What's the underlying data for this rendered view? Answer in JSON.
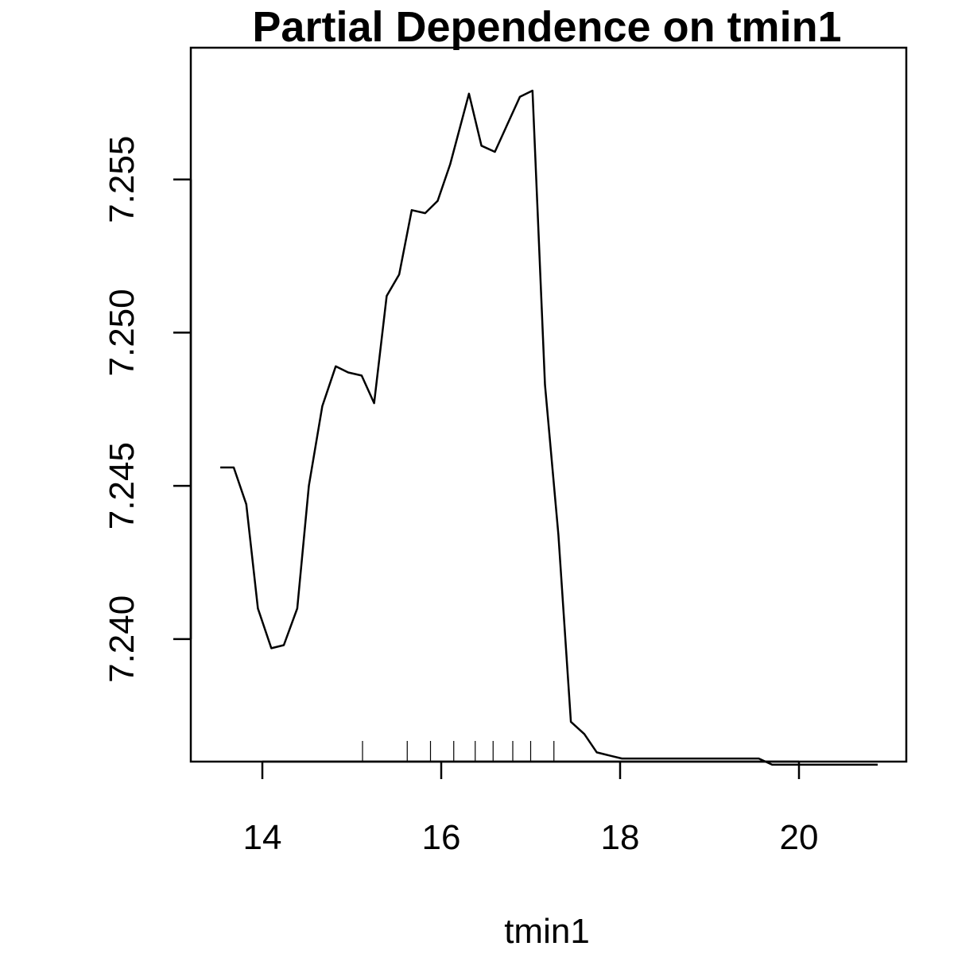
{
  "chart_data": {
    "type": "line",
    "title": "Partial Dependence on tmin1",
    "xlabel": "tmin1",
    "ylabel": "",
    "xlim": [
      13.2,
      21.2
    ],
    "ylim": [
      7.236,
      7.2593
    ],
    "x_ticks": [
      14,
      16,
      18,
      20
    ],
    "x_tick_labels": [
      "14",
      "16",
      "18",
      "20"
    ],
    "y_ticks": [
      7.24,
      7.245,
      7.25,
      7.255
    ],
    "y_tick_labels": [
      "7.240",
      "7.245",
      "7.250",
      "7.255"
    ],
    "grid": false,
    "series": [
      {
        "x": [
          13.53,
          13.68,
          13.82,
          13.95,
          14.1,
          14.24,
          14.39,
          14.52,
          14.67,
          14.82,
          14.96,
          15.11,
          15.25,
          15.39,
          15.53,
          15.67,
          15.82,
          15.96,
          16.1,
          16.31,
          16.45,
          16.6,
          16.74,
          16.88,
          17.02,
          17.16,
          17.31,
          17.45,
          17.6,
          17.74,
          17.88,
          18.02,
          18.3,
          18.6,
          19.0,
          19.55,
          19.7,
          20.2,
          20.5,
          20.88
        ],
        "y": [
          7.2456,
          7.2456,
          7.2444,
          7.241,
          7.2397,
          7.2398,
          7.241,
          7.245,
          7.2476,
          7.2489,
          7.2487,
          7.2486,
          7.2477,
          7.2512,
          7.2519,
          7.254,
          7.2539,
          7.2543,
          7.2555,
          7.2578,
          7.2561,
          7.2559,
          7.2568,
          7.2577,
          7.2579,
          7.2483,
          7.2434,
          7.2373,
          7.2369,
          7.2363,
          7.2362,
          7.2361,
          7.2361,
          7.2361,
          7.2361,
          7.2361,
          7.2359,
          7.2359,
          7.2359,
          7.2359
        ]
      }
    ],
    "rug": [
      15.12,
      15.62,
      15.88,
      16.14,
      16.38,
      16.58,
      16.8,
      17.0,
      17.26
    ]
  }
}
